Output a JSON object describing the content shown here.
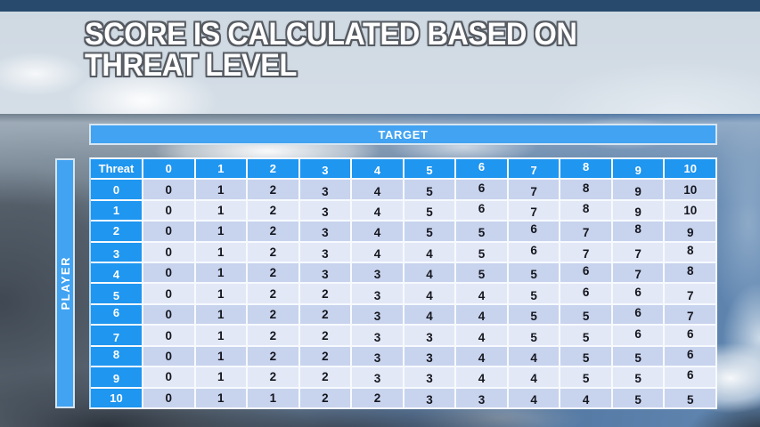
{
  "slide": {
    "title_line1": "SCORE IS CALCULATED BASED ON",
    "title_line2": "THREAT LEVEL"
  },
  "chart_data": {
    "type": "table",
    "target_label": "TARGET",
    "player_label": "PLAYER",
    "corner_label": "Threat",
    "column_headers": [
      "0",
      "1",
      "2",
      "3",
      "4",
      "5",
      "6",
      "7",
      "8",
      "9",
      "10"
    ],
    "rows": [
      {
        "threat": "0",
        "values": [
          0,
          1,
          2,
          3,
          4,
          5,
          6,
          7,
          8,
          9,
          10
        ]
      },
      {
        "threat": "1",
        "values": [
          0,
          1,
          2,
          3,
          4,
          5,
          6,
          7,
          8,
          9,
          10
        ]
      },
      {
        "threat": "2",
        "values": [
          0,
          1,
          2,
          3,
          4,
          5,
          5,
          6,
          7,
          8,
          9
        ]
      },
      {
        "threat": "3",
        "values": [
          0,
          1,
          2,
          3,
          4,
          4,
          5,
          6,
          7,
          7,
          8
        ]
      },
      {
        "threat": "4",
        "values": [
          0,
          1,
          2,
          3,
          3,
          4,
          5,
          5,
          6,
          7,
          8
        ]
      },
      {
        "threat": "5",
        "values": [
          0,
          1,
          2,
          2,
          3,
          4,
          4,
          5,
          6,
          6,
          7
        ]
      },
      {
        "threat": "6",
        "values": [
          0,
          1,
          2,
          2,
          3,
          4,
          4,
          5,
          5,
          6,
          7
        ]
      },
      {
        "threat": "7",
        "values": [
          0,
          1,
          2,
          2,
          3,
          3,
          4,
          5,
          5,
          6,
          6
        ]
      },
      {
        "threat": "8",
        "values": [
          0,
          1,
          2,
          2,
          3,
          3,
          4,
          4,
          5,
          5,
          6
        ]
      },
      {
        "threat": "9",
        "values": [
          0,
          1,
          2,
          2,
          3,
          3,
          4,
          4,
          5,
          5,
          6
        ]
      },
      {
        "threat": "10",
        "values": [
          0,
          1,
          1,
          2,
          2,
          3,
          3,
          4,
          4,
          5,
          5
        ]
      }
    ]
  },
  "colors": {
    "header_blue": "#1f96f0",
    "bar_blue": "#41a3f2",
    "row_alt_dark": "#c8d3ee",
    "row_alt_light": "#e3e8f7",
    "top_strip_navy": "#284a6d",
    "cell_text": "#15171e"
  }
}
